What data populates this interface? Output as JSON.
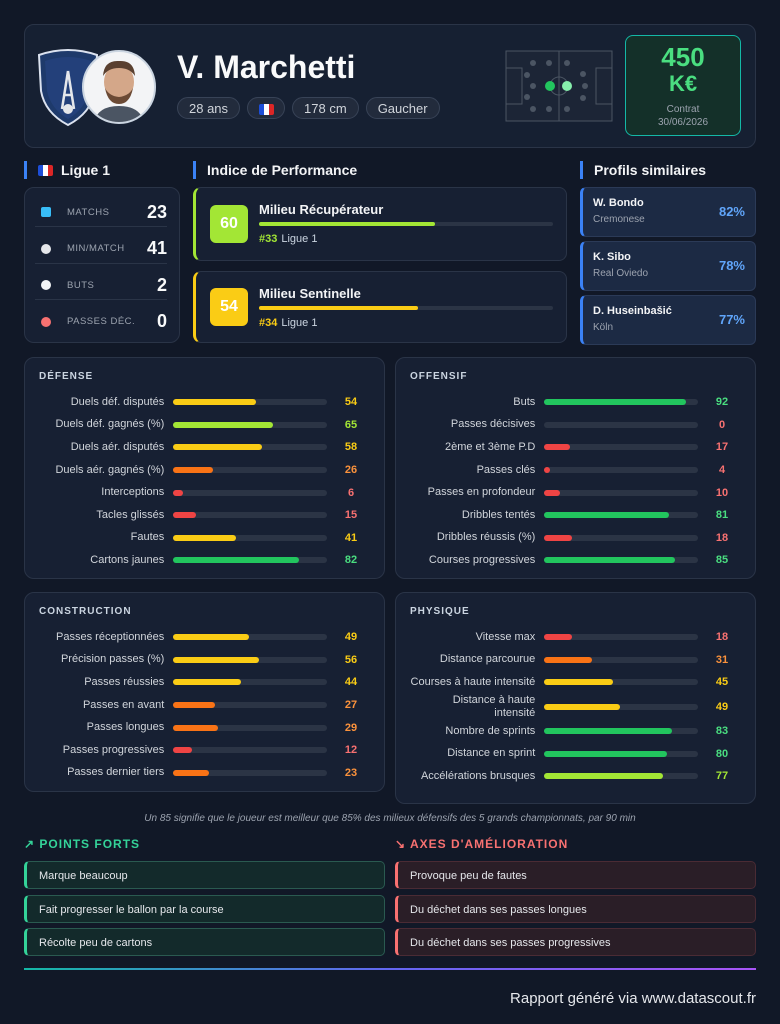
{
  "header": {
    "name": "V. Marchetti",
    "age": "28 ans",
    "height": "178 cm",
    "foot": "Gaucher",
    "contract": {
      "value": 450,
      "unit": "K€",
      "label": "Contrat",
      "date": "30/06/2026"
    }
  },
  "league": {
    "title": "Ligue 1",
    "stats": [
      {
        "label": "MATCHS",
        "value": 23
      },
      {
        "label": "MIN/MATCH",
        "value": 41
      },
      {
        "label": "BUTS",
        "value": 2
      },
      {
        "label": "PASSES DÉC.",
        "value": 0
      }
    ]
  },
  "performance": {
    "title": "Indice de Performance",
    "roles": [
      {
        "score": 60,
        "role": "Milieu Récupérateur",
        "rank": "#33",
        "league": "Ligue 1"
      },
      {
        "score": 54,
        "role": "Milieu Sentinelle",
        "rank": "#34",
        "league": "Ligue 1"
      }
    ]
  },
  "similar": {
    "title": "Profils similaires",
    "players": [
      {
        "name": "W. Bondo",
        "club": "Cremonese",
        "match": "82%"
      },
      {
        "name": "K. Sibo",
        "club": "Real Oviedo",
        "match": "78%"
      },
      {
        "name": "D. Huseinbašić",
        "club": "Köln",
        "match": "77%"
      }
    ]
  },
  "panels": [
    {
      "title": "DÉFENSE",
      "rows": [
        {
          "label": "Duels déf. disputés",
          "value": 54
        },
        {
          "label": "Duels déf. gagnés (%)",
          "value": 65
        },
        {
          "label": "Duels aér. disputés",
          "value": 58
        },
        {
          "label": "Duels aér. gagnés (%)",
          "value": 26
        },
        {
          "label": "Interceptions",
          "value": 6
        },
        {
          "label": "Tacles glissés",
          "value": 15
        },
        {
          "label": "Fautes",
          "value": 41
        },
        {
          "label": "Cartons jaunes",
          "value": 82
        }
      ]
    },
    {
      "title": "OFFENSIF",
      "rows": [
        {
          "label": "Buts",
          "value": 92
        },
        {
          "label": "Passes décisives",
          "value": 0
        },
        {
          "label": "2ème et 3ème P.D",
          "value": 17
        },
        {
          "label": "Passes clés",
          "value": 4
        },
        {
          "label": "Passes en profondeur",
          "value": 10
        },
        {
          "label": "Dribbles tentés",
          "value": 81
        },
        {
          "label": "Dribbles réussis (%)",
          "value": 18
        },
        {
          "label": "Courses progressives",
          "value": 85
        }
      ]
    },
    {
      "title": "CONSTRUCTION",
      "rows": [
        {
          "label": "Passes réceptionnées",
          "value": 49
        },
        {
          "label": "Précision passes (%)",
          "value": 56
        },
        {
          "label": "Passes réussies",
          "value": 44
        },
        {
          "label": "Passes en avant",
          "value": 27
        },
        {
          "label": "Passes longues",
          "value": 29
        },
        {
          "label": "Passes progressives",
          "value": 12
        },
        {
          "label": "Passes dernier tiers",
          "value": 23
        }
      ]
    },
    {
      "title": "PHYSIQUE",
      "rows": [
        {
          "label": "Vitesse max",
          "value": 18
        },
        {
          "label": "Distance parcourue",
          "value": 31
        },
        {
          "label": "Courses à haute intensité",
          "value": 45
        },
        {
          "label": "Distance à haute intensité",
          "value": 49
        },
        {
          "label": "Nombre de sprints",
          "value": 83
        },
        {
          "label": "Distance en sprint",
          "value": 80
        },
        {
          "label": "Accélérations brusques",
          "value": 77
        }
      ]
    }
  ],
  "scale_note": "Un 85 signifie que le joueur est meilleur que 85% des milieux défensifs des 5 grands championnats, par 90 min",
  "strengths": {
    "title": "POINTS FORTS",
    "items": [
      "Marque beaucoup",
      "Fait progresser le ballon par la course",
      "Récolte peu de cartons"
    ]
  },
  "improvements": {
    "title": "AXES D'AMÉLIORATION",
    "items": [
      "Provoque peu de fautes",
      "Du déchet dans ses passes longues",
      "Du déchet dans ses passes progressives"
    ]
  },
  "footer": "Rapport généré via www.datascout.fr"
}
